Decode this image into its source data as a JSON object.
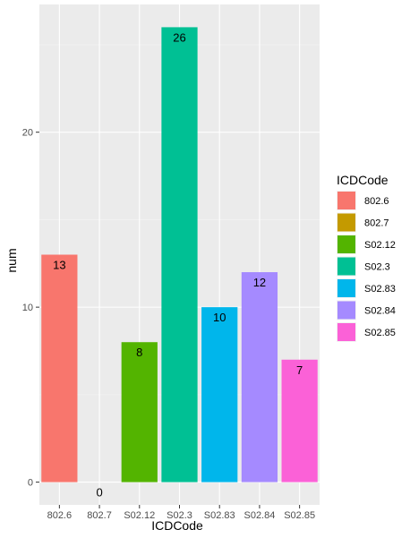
{
  "chart_data": {
    "type": "bar",
    "categories": [
      "802.6",
      "802.7",
      "S02.12",
      "S02.3",
      "S02.83",
      "S02.84",
      "S02.85"
    ],
    "values": [
      13,
      0,
      8,
      26,
      10,
      12,
      7
    ],
    "data_labels": [
      "13",
      "0",
      "8",
      "26",
      "10",
      "12",
      "7"
    ],
    "colors": [
      "#F8766D",
      "#C49A00",
      "#53B400",
      "#00C094",
      "#00B6EB",
      "#A58AFF",
      "#FB61D7"
    ],
    "xlabel": "ICDCode",
    "ylabel": "num",
    "y_ticks": [
      0,
      10,
      20
    ],
    "y_tick_labels": [
      "0",
      "10",
      "20"
    ],
    "ylim": [
      -1.3,
      27.3
    ],
    "grid": true,
    "panel_background": "#EBEBEB",
    "legend": {
      "title": "ICDCode",
      "position": "right",
      "items": [
        "802.6",
        "802.7",
        "S02.12",
        "S02.3",
        "S02.83",
        "S02.84",
        "S02.85"
      ]
    }
  }
}
